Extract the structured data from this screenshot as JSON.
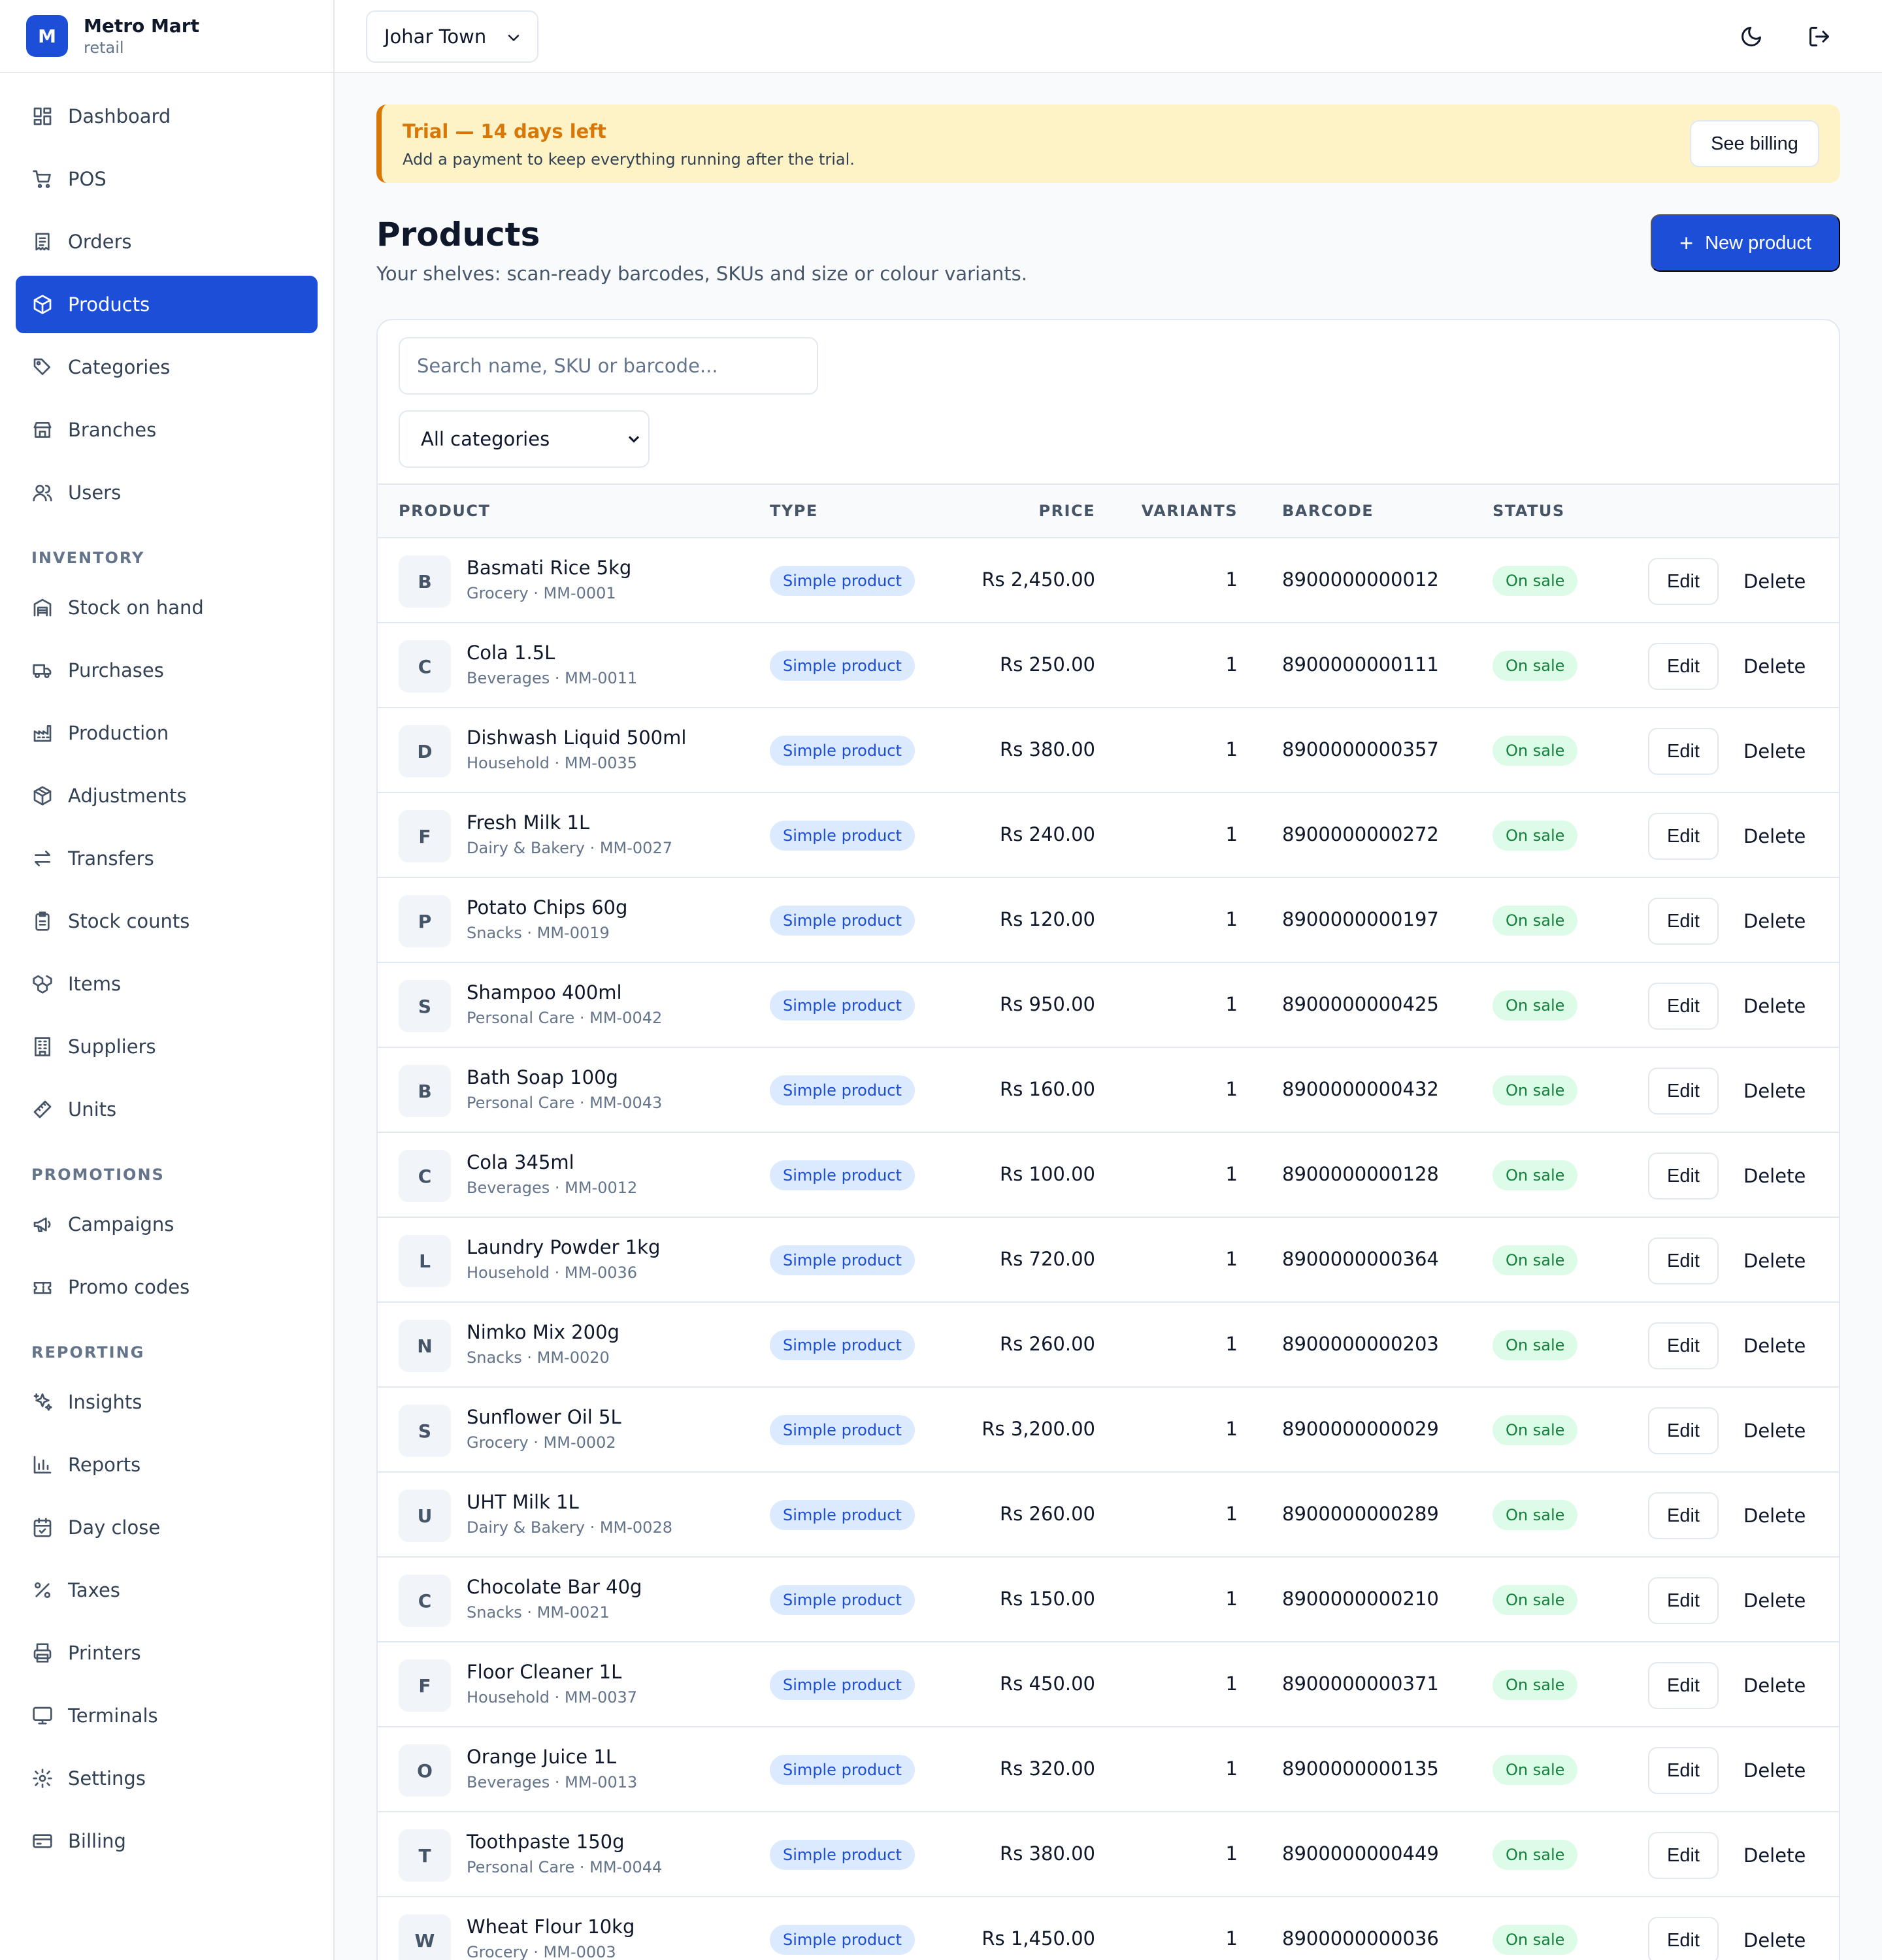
{
  "brand": {
    "initial": "M",
    "name": "Metro Mart",
    "subtitle": "retail"
  },
  "nav": {
    "main": [
      {
        "label": "Dashboard",
        "icon": "dashboard-icon"
      },
      {
        "label": "POS",
        "icon": "cart-icon"
      },
      {
        "label": "Orders",
        "icon": "receipt-icon"
      },
      {
        "label": "Products",
        "icon": "box-icon",
        "active": true
      },
      {
        "label": "Categories",
        "icon": "tag-icon"
      },
      {
        "label": "Branches",
        "icon": "store-icon"
      },
      {
        "label": "Users",
        "icon": "users-icon"
      }
    ],
    "inventory_label": "INVENTORY",
    "inventory": [
      {
        "label": "Stock on hand",
        "icon": "warehouse-icon"
      },
      {
        "label": "Purchases",
        "icon": "truck-icon"
      },
      {
        "label": "Production",
        "icon": "factory-icon"
      },
      {
        "label": "Adjustments",
        "icon": "package-icon"
      },
      {
        "label": "Transfers",
        "icon": "transfer-icon"
      },
      {
        "label": "Stock counts",
        "icon": "clipboard-icon"
      },
      {
        "label": "Items",
        "icon": "boxes-icon"
      },
      {
        "label": "Suppliers",
        "icon": "building-icon"
      },
      {
        "label": "Units",
        "icon": "ruler-icon"
      }
    ],
    "promotions_label": "PROMOTIONS",
    "promotions": [
      {
        "label": "Campaigns",
        "icon": "megaphone-icon"
      },
      {
        "label": "Promo codes",
        "icon": "ticket-icon"
      }
    ],
    "reporting_label": "REPORTING",
    "reporting": [
      {
        "label": "Insights",
        "icon": "sparkles-icon"
      },
      {
        "label": "Reports",
        "icon": "bar-chart-icon"
      },
      {
        "label": "Day close",
        "icon": "calendar-check-icon"
      },
      {
        "label": "Taxes",
        "icon": "percent-icon"
      },
      {
        "label": "Printers",
        "icon": "printer-icon"
      },
      {
        "label": "Terminals",
        "icon": "monitor-icon"
      },
      {
        "label": "Settings",
        "icon": "gear-icon"
      },
      {
        "label": "Billing",
        "icon": "credit-card-icon"
      }
    ]
  },
  "topbar": {
    "branch": "Johar Town",
    "theme_icon": "moon-icon",
    "logout_icon": "logout-icon"
  },
  "banner": {
    "title": "Trial — 14 days left",
    "text": "Add a payment to keep everything running after the trial.",
    "button": "See billing"
  },
  "header": {
    "title": "Products",
    "subtitle": "Your shelves: scan-ready barcodes, SKUs and size or colour variants.",
    "new_button": "New product"
  },
  "filters": {
    "search_placeholder": "Search name, SKU or barcode...",
    "category": "All categories"
  },
  "table": {
    "columns": [
      "PRODUCT",
      "TYPE",
      "PRICE",
      "VARIANTS",
      "BARCODE",
      "STATUS"
    ],
    "edit_label": "Edit",
    "delete_label": "Delete",
    "rows": [
      {
        "initial": "B",
        "name": "Basmati Rice 5kg",
        "meta": "Grocery · MM-0001",
        "type": "Simple product",
        "price": "Rs 2,450.00",
        "variants": "1",
        "barcode": "8900000000012",
        "status": "On sale"
      },
      {
        "initial": "C",
        "name": "Cola 1.5L",
        "meta": "Beverages · MM-0011",
        "type": "Simple product",
        "price": "Rs 250.00",
        "variants": "1",
        "barcode": "8900000000111",
        "status": "On sale"
      },
      {
        "initial": "D",
        "name": "Dishwash Liquid 500ml",
        "meta": "Household · MM-0035",
        "type": "Simple product",
        "price": "Rs 380.00",
        "variants": "1",
        "barcode": "8900000000357",
        "status": "On sale"
      },
      {
        "initial": "F",
        "name": "Fresh Milk 1L",
        "meta": "Dairy & Bakery · MM-0027",
        "type": "Simple product",
        "price": "Rs 240.00",
        "variants": "1",
        "barcode": "8900000000272",
        "status": "On sale"
      },
      {
        "initial": "P",
        "name": "Potato Chips 60g",
        "meta": "Snacks · MM-0019",
        "type": "Simple product",
        "price": "Rs 120.00",
        "variants": "1",
        "barcode": "8900000000197",
        "status": "On sale"
      },
      {
        "initial": "S",
        "name": "Shampoo 400ml",
        "meta": "Personal Care · MM-0042",
        "type": "Simple product",
        "price": "Rs 950.00",
        "variants": "1",
        "barcode": "8900000000425",
        "status": "On sale"
      },
      {
        "initial": "B",
        "name": "Bath Soap 100g",
        "meta": "Personal Care · MM-0043",
        "type": "Simple product",
        "price": "Rs 160.00",
        "variants": "1",
        "barcode": "8900000000432",
        "status": "On sale"
      },
      {
        "initial": "C",
        "name": "Cola 345ml",
        "meta": "Beverages · MM-0012",
        "type": "Simple product",
        "price": "Rs 100.00",
        "variants": "1",
        "barcode": "8900000000128",
        "status": "On sale"
      },
      {
        "initial": "L",
        "name": "Laundry Powder 1kg",
        "meta": "Household · MM-0036",
        "type": "Simple product",
        "price": "Rs 720.00",
        "variants": "1",
        "barcode": "8900000000364",
        "status": "On sale"
      },
      {
        "initial": "N",
        "name": "Nimko Mix 200g",
        "meta": "Snacks · MM-0020",
        "type": "Simple product",
        "price": "Rs 260.00",
        "variants": "1",
        "barcode": "8900000000203",
        "status": "On sale"
      },
      {
        "initial": "S",
        "name": "Sunflower Oil 5L",
        "meta": "Grocery · MM-0002",
        "type": "Simple product",
        "price": "Rs 3,200.00",
        "variants": "1",
        "barcode": "8900000000029",
        "status": "On sale"
      },
      {
        "initial": "U",
        "name": "UHT Milk 1L",
        "meta": "Dairy & Bakery · MM-0028",
        "type": "Simple product",
        "price": "Rs 260.00",
        "variants": "1",
        "barcode": "8900000000289",
        "status": "On sale"
      },
      {
        "initial": "C",
        "name": "Chocolate Bar 40g",
        "meta": "Snacks · MM-0021",
        "type": "Simple product",
        "price": "Rs 150.00",
        "variants": "1",
        "barcode": "8900000000210",
        "status": "On sale"
      },
      {
        "initial": "F",
        "name": "Floor Cleaner 1L",
        "meta": "Household · MM-0037",
        "type": "Simple product",
        "price": "Rs 450.00",
        "variants": "1",
        "barcode": "8900000000371",
        "status": "On sale"
      },
      {
        "initial": "O",
        "name": "Orange Juice 1L",
        "meta": "Beverages · MM-0013",
        "type": "Simple product",
        "price": "Rs 320.00",
        "variants": "1",
        "barcode": "8900000000135",
        "status": "On sale"
      },
      {
        "initial": "T",
        "name": "Toothpaste 150g",
        "meta": "Personal Care · MM-0044",
        "type": "Simple product",
        "price": "Rs 380.00",
        "variants": "1",
        "barcode": "8900000000449",
        "status": "On sale"
      },
      {
        "initial": "W",
        "name": "Wheat Flour 10kg",
        "meta": "Grocery · MM-0003",
        "type": "Simple product",
        "price": "Rs 1,450.00",
        "variants": "1",
        "barcode": "8900000000036",
        "status": "On sale"
      }
    ]
  }
}
